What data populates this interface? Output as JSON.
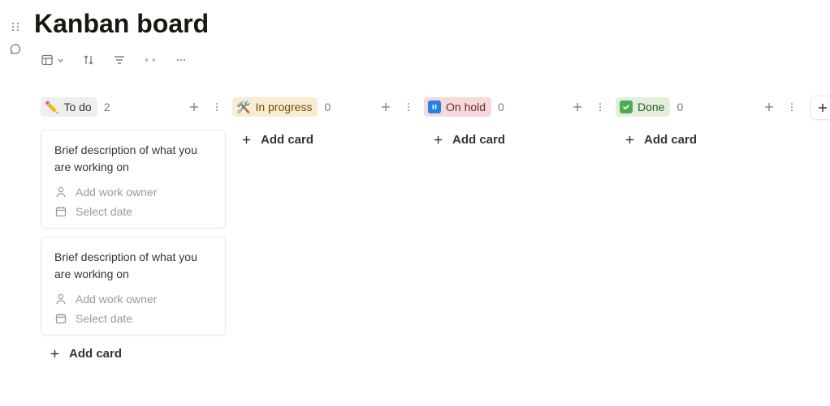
{
  "page": {
    "title": "Kanban board"
  },
  "toolbar": {
    "view_icon": "layout",
    "sort_icon": "sort",
    "filter_icon": "filter",
    "expand_icon": "expand",
    "more_icon": "more"
  },
  "add_card_label": "Add card",
  "card_defaults": {
    "owner_placeholder": "Add work owner",
    "date_placeholder": "Select date"
  },
  "columns": [
    {
      "id": "todo",
      "label": "To do",
      "emoji": "✏️",
      "count": 2,
      "bg_color": "#efefee",
      "text_color": "#37352f",
      "cards": [
        {
          "title": "Brief description of what you are working on"
        },
        {
          "title": "Brief description of what you are working on"
        }
      ]
    },
    {
      "id": "in-progress",
      "label": "In progress",
      "emoji": "🛠️",
      "count": 0,
      "bg_color": "#faecd0",
      "text_color": "#6a5214",
      "cards": []
    },
    {
      "id": "on-hold",
      "label": "On hold",
      "emoji": "pause-badge",
      "badge_bg": "#2383e2",
      "count": 0,
      "bg_color": "#f7d9dc",
      "text_color": "#6e2b33",
      "cards": []
    },
    {
      "id": "done",
      "label": "Done",
      "emoji": "check-badge",
      "badge_bg": "#4dab53",
      "count": 0,
      "bg_color": "#e3efdb",
      "text_color": "#2b5a2b",
      "cards": []
    }
  ]
}
